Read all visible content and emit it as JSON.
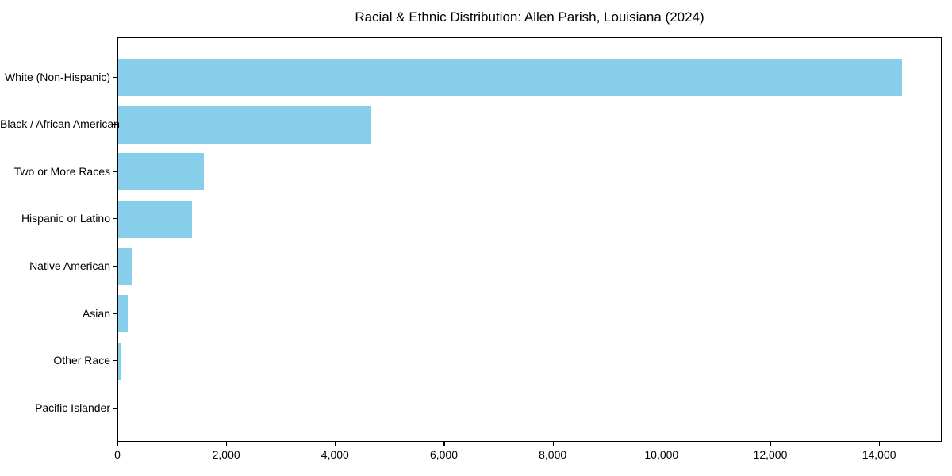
{
  "figure": {
    "background_color": "#ffffff",
    "bar_color": "#87CEEB",
    "axis_color": "#000000",
    "text_color": "#000000"
  },
  "chart_data": {
    "type": "bar",
    "orientation": "horizontal",
    "title": "Racial & Ethnic Distribution: Allen Parish, Louisiana (2024)",
    "categories": [
      "White (Non-Hispanic)",
      "Black / African American",
      "Two or More Races",
      "Hispanic or Latino",
      "Native American",
      "Asian",
      "Other Race",
      "Pacific Islander"
    ],
    "values": [
      14400,
      4650,
      1580,
      1350,
      245,
      170,
      50,
      0
    ],
    "xlabel": "",
    "ylabel": "",
    "xlim": [
      0,
      15150
    ],
    "x_ticks": [
      0,
      2000,
      4000,
      6000,
      8000,
      10000,
      12000,
      14000
    ],
    "x_tick_labels": [
      "0",
      "2,000",
      "4,000",
      "6,000",
      "8,000",
      "10,000",
      "12,000",
      "14,000"
    ],
    "grid": false,
    "legend": "none",
    "bar_color_name": "skyblue"
  }
}
